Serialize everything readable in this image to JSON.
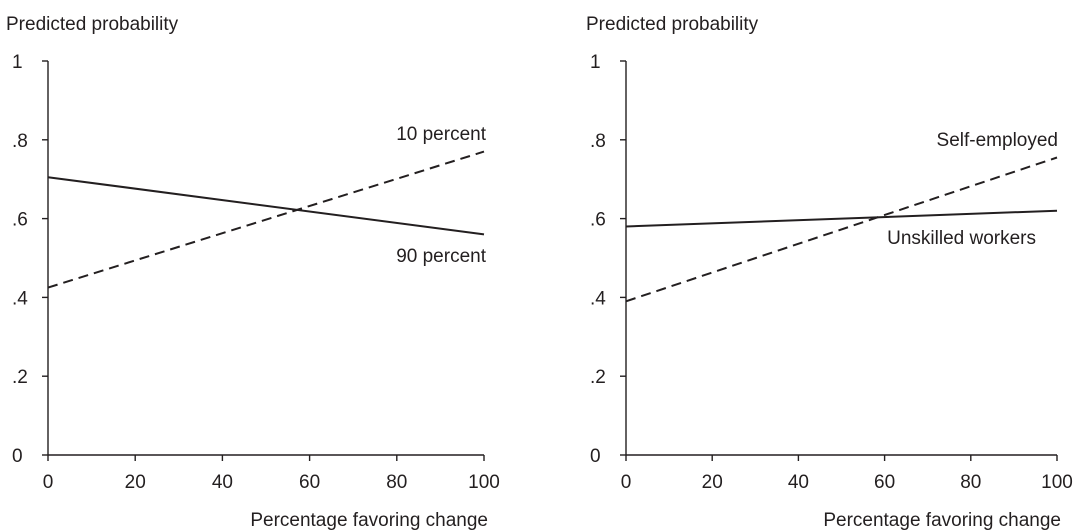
{
  "chart_data": [
    {
      "type": "line",
      "title": "",
      "ylabel": "Predicted probability",
      "xlabel": "Percentage favoring change",
      "xlim": [
        0,
        100
      ],
      "ylim": [
        0,
        1
      ],
      "x_ticks": [
        0,
        20,
        40,
        60,
        80,
        100
      ],
      "x_tick_labels": [
        "0",
        "20",
        "40",
        "60",
        "80",
        "100"
      ],
      "y_ticks": [
        0,
        0.2,
        0.4,
        0.6,
        0.8,
        1
      ],
      "y_tick_labels": [
        "0",
        ".2",
        ".4",
        ".6",
        ".8",
        "1"
      ],
      "grid": false,
      "legend": "none",
      "series": [
        {
          "name": "10 percent",
          "style": "dashed",
          "x": [
            0,
            100
          ],
          "y": [
            0.425,
            0.77
          ]
        },
        {
          "name": "90 percent",
          "style": "solid",
          "x": [
            0,
            100
          ],
          "y": [
            0.705,
            0.56
          ]
        }
      ]
    },
    {
      "type": "line",
      "title": "",
      "ylabel": "Predicted probability",
      "xlabel": "Percentage favoring change",
      "xlim": [
        0,
        100
      ],
      "ylim": [
        0,
        1
      ],
      "x_ticks": [
        0,
        20,
        40,
        60,
        80,
        100
      ],
      "x_tick_labels": [
        "0",
        "20",
        "40",
        "60",
        "80",
        "100"
      ],
      "y_ticks": [
        0,
        0.2,
        0.4,
        0.6,
        0.8,
        1
      ],
      "y_tick_labels": [
        "0",
        ".2",
        ".4",
        ".6",
        ".8",
        "1"
      ],
      "grid": false,
      "legend": "none",
      "series": [
        {
          "name": "Self-employed",
          "style": "dashed",
          "x": [
            0,
            100
          ],
          "y": [
            0.39,
            0.755
          ]
        },
        {
          "name": "Unskilled workers",
          "style": "solid",
          "x": [
            0,
            100
          ],
          "y": [
            0.58,
            0.62
          ]
        }
      ]
    }
  ]
}
